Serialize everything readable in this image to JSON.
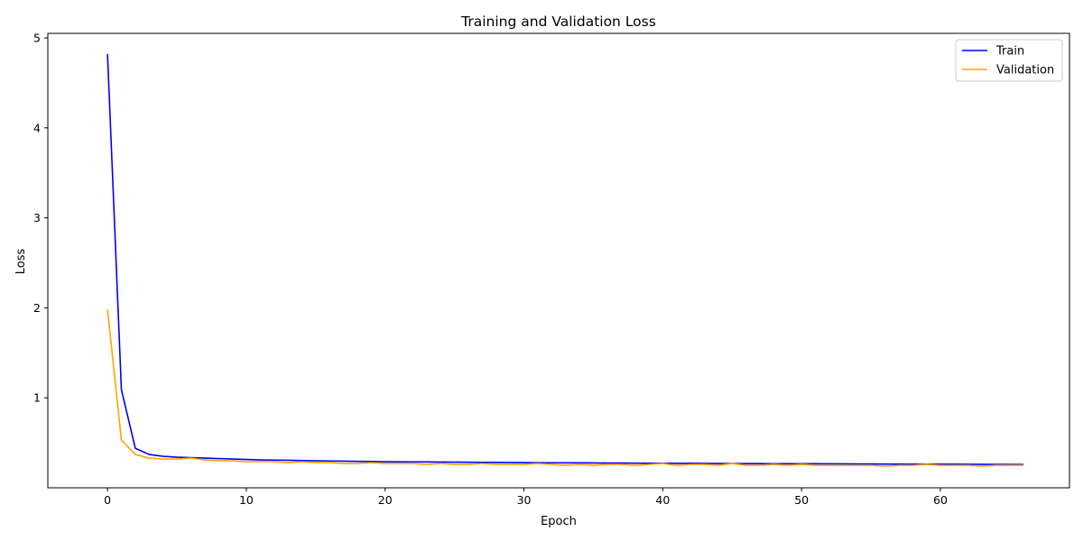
{
  "chart_data": {
    "type": "line",
    "title": "Training and Validation Loss",
    "xlabel": "Epoch",
    "ylabel": "Loss",
    "xlim": [
      -4.3,
      69.3
    ],
    "ylim": [
      0.0,
      5.05
    ],
    "xticks": [
      0,
      10,
      20,
      30,
      40,
      50,
      60
    ],
    "yticks": [
      1,
      2,
      3,
      4,
      5
    ],
    "grid": false,
    "legend_position": "top-right",
    "series": [
      {
        "name": "Train",
        "color": "#0000ff",
        "values": [
          4.82,
          1.09,
          0.44,
          0.37,
          0.35,
          0.34,
          0.335,
          0.33,
          0.325,
          0.32,
          0.315,
          0.31,
          0.308,
          0.306,
          0.303,
          0.3,
          0.298,
          0.296,
          0.294,
          0.292,
          0.29,
          0.289,
          0.288,
          0.287,
          0.286,
          0.285,
          0.284,
          0.283,
          0.282,
          0.281,
          0.28,
          0.279,
          0.278,
          0.277,
          0.277,
          0.276,
          0.275,
          0.275,
          0.274,
          0.273,
          0.273,
          0.272,
          0.272,
          0.271,
          0.27,
          0.27,
          0.269,
          0.269,
          0.268,
          0.268,
          0.267,
          0.267,
          0.266,
          0.266,
          0.265,
          0.265,
          0.264,
          0.264,
          0.263,
          0.263,
          0.262,
          0.262,
          0.261,
          0.261,
          0.26,
          0.26,
          0.259
        ]
      },
      {
        "name": "Validation",
        "color": "#ffa500",
        "values": [
          1.98,
          0.53,
          0.37,
          0.33,
          0.32,
          0.32,
          0.33,
          0.31,
          0.3,
          0.3,
          0.29,
          0.29,
          0.29,
          0.28,
          0.29,
          0.28,
          0.28,
          0.27,
          0.27,
          0.28,
          0.27,
          0.27,
          0.27,
          0.26,
          0.27,
          0.26,
          0.26,
          0.27,
          0.26,
          0.26,
          0.26,
          0.27,
          0.26,
          0.25,
          0.26,
          0.25,
          0.26,
          0.26,
          0.25,
          0.26,
          0.27,
          0.25,
          0.26,
          0.26,
          0.25,
          0.27,
          0.25,
          0.25,
          0.26,
          0.25,
          0.26,
          0.25,
          0.25,
          0.25,
          0.25,
          0.25,
          0.24,
          0.25,
          0.25,
          0.26,
          0.25,
          0.25,
          0.25,
          0.24,
          0.25,
          0.25,
          0.25
        ]
      }
    ]
  }
}
